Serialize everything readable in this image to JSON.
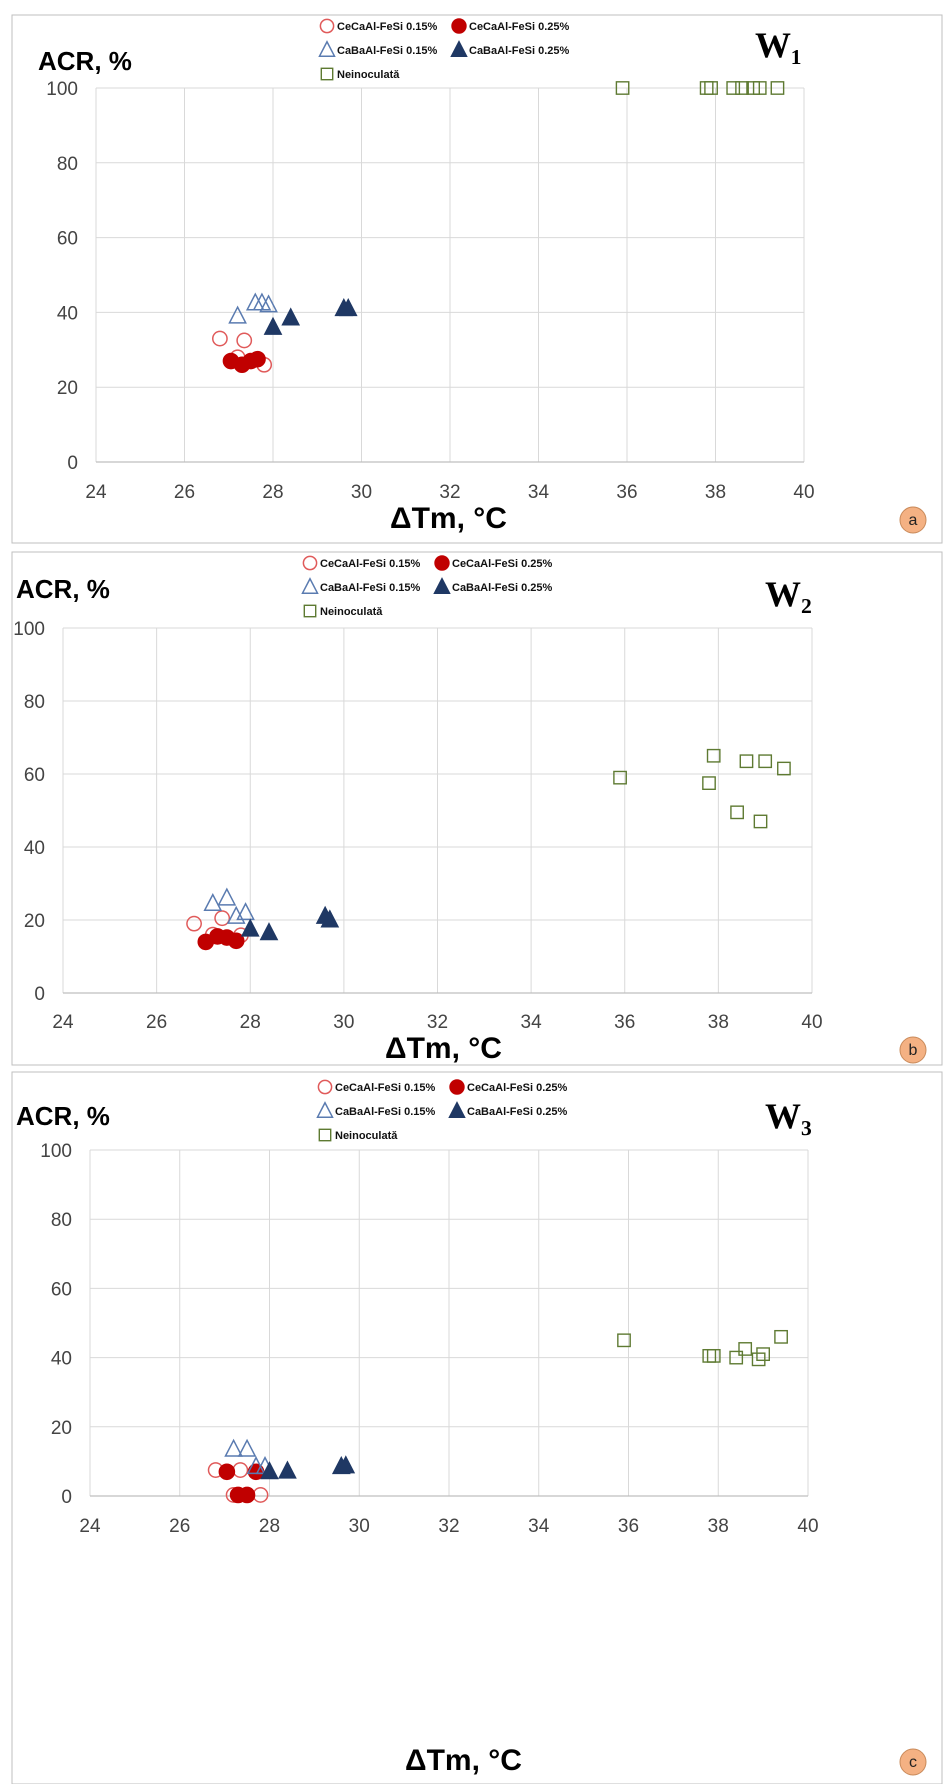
{
  "legend_labels": [
    "CeCaAl-FeSi 0.15%",
    "CeCaAl-FeSi 0.25%",
    "CaBaAl-FeSi 0.15%",
    "CaBaAl-FeSi 0.25%",
    "Neinoculată"
  ],
  "colors": {
    "cecaal_015": "#e05a5a",
    "cecaal_025": "#c00000",
    "cabaal_015": "#5a7bb0",
    "cabaal_025": "#1f3864",
    "neinoculata": "#5e7a32",
    "badge": "#f4b183",
    "grid": "#d9d9d9"
  },
  "chart_data": [
    {
      "type": "scatter",
      "panel_label": "W₁",
      "badge": "a",
      "ylabel": "ACR, %",
      "xlabel": "ΔTm, °C",
      "xlim": [
        24,
        40
      ],
      "ylim": [
        0,
        100
      ],
      "xticks": [
        24,
        26,
        28,
        30,
        32,
        34,
        36,
        38,
        40
      ],
      "yticks": [
        0,
        20,
        40,
        60,
        80,
        100
      ],
      "grid": true,
      "series": [
        {
          "name": "CeCaAl-FeSi 0.15%",
          "marker": "circle-open",
          "points": [
            [
              26.8,
              33
            ],
            [
              27.2,
              28
            ],
            [
              27.35,
              32.5
            ],
            [
              27.8,
              26
            ]
          ]
        },
        {
          "name": "CeCaAl-FeSi 0.25%",
          "marker": "circle-filled",
          "points": [
            [
              27.05,
              27
            ],
            [
              27.3,
              26
            ],
            [
              27.5,
              27
            ],
            [
              27.65,
              27.5
            ]
          ]
        },
        {
          "name": "CaBaAl-FeSi 0.15%",
          "marker": "triangle-open",
          "points": [
            [
              27.2,
              39
            ],
            [
              27.6,
              42.5
            ],
            [
              27.75,
              42.5
            ],
            [
              27.9,
              42
            ]
          ]
        },
        {
          "name": "CaBaAl-FeSi 0.25%",
          "marker": "triangle-filled",
          "points": [
            [
              28.0,
              36
            ],
            [
              28.4,
              38.5
            ],
            [
              29.6,
              41
            ],
            [
              29.7,
              41
            ]
          ]
        },
        {
          "name": "Neinoculată",
          "marker": "square-open",
          "points": [
            [
              35.9,
              100
            ],
            [
              37.8,
              100
            ],
            [
              37.9,
              100
            ],
            [
              38.4,
              100
            ],
            [
              38.6,
              100
            ],
            [
              38.85,
              100
            ],
            [
              39.0,
              100
            ],
            [
              39.4,
              100
            ]
          ]
        }
      ]
    },
    {
      "type": "scatter",
      "panel_label": "W₂",
      "badge": "b",
      "ylabel": "ACR, %",
      "xlabel": "ΔTm, °C",
      "xlim": [
        24,
        40
      ],
      "ylim": [
        0,
        100
      ],
      "xticks": [
        24,
        26,
        28,
        30,
        32,
        34,
        36,
        38,
        40
      ],
      "yticks": [
        0,
        20,
        40,
        60,
        80,
        100
      ],
      "grid": true,
      "series": [
        {
          "name": "CeCaAl-FeSi 0.15%",
          "marker": "circle-open",
          "points": [
            [
              26.8,
              19
            ],
            [
              27.2,
              16
            ],
            [
              27.4,
              20.5
            ],
            [
              27.8,
              15.8
            ]
          ]
        },
        {
          "name": "CeCaAl-FeSi 0.25%",
          "marker": "circle-filled",
          "points": [
            [
              27.05,
              14
            ],
            [
              27.3,
              15.5
            ],
            [
              27.5,
              15.2
            ],
            [
              27.7,
              14.3
            ]
          ]
        },
        {
          "name": "CaBaAl-FeSi 0.15%",
          "marker": "triangle-open",
          "points": [
            [
              27.2,
              24.5
            ],
            [
              27.5,
              26
            ],
            [
              27.7,
              21
            ],
            [
              27.9,
              22
            ]
          ]
        },
        {
          "name": "CaBaAl-FeSi 0.25%",
          "marker": "triangle-filled",
          "points": [
            [
              28.0,
              17.5
            ],
            [
              28.4,
              16.5
            ],
            [
              29.6,
              21
            ],
            [
              29.7,
              20
            ]
          ]
        },
        {
          "name": "Neinoculată",
          "marker": "square-open",
          "points": [
            [
              35.9,
              59
            ],
            [
              37.8,
              57.5
            ],
            [
              37.9,
              65
            ],
            [
              38.4,
              49.5
            ],
            [
              38.6,
              63.5
            ],
            [
              38.9,
              47
            ],
            [
              39.0,
              63.5
            ],
            [
              39.4,
              61.5
            ]
          ]
        }
      ]
    },
    {
      "type": "scatter",
      "panel_label": "W₃",
      "badge": "c",
      "ylabel": "ACR, %",
      "xlabel": "ΔTm, °C",
      "xlim": [
        24,
        40
      ],
      "ylim": [
        0,
        100
      ],
      "xticks": [
        24,
        26,
        28,
        30,
        32,
        34,
        36,
        38,
        40
      ],
      "yticks": [
        0,
        20,
        40,
        60,
        80,
        100
      ],
      "grid": true,
      "series": [
        {
          "name": "CeCaAl-FeSi 0.15%",
          "marker": "circle-open",
          "points": [
            [
              26.8,
              7.5
            ],
            [
              27.2,
              0.3
            ],
            [
              27.35,
              7.5
            ],
            [
              27.8,
              0.3
            ]
          ]
        },
        {
          "name": "CeCaAl-FeSi 0.25%",
          "marker": "circle-filled",
          "points": [
            [
              27.05,
              7
            ],
            [
              27.3,
              0.3
            ],
            [
              27.5,
              0.3
            ],
            [
              27.7,
              7
            ]
          ]
        },
        {
          "name": "CaBaAl-FeSi 0.15%",
          "marker": "triangle-open",
          "points": [
            [
              27.2,
              13.5
            ],
            [
              27.5,
              13.5
            ],
            [
              27.7,
              8.5
            ],
            [
              27.9,
              8.5
            ]
          ]
        },
        {
          "name": "CaBaAl-FeSi 0.25%",
          "marker": "triangle-filled",
          "points": [
            [
              28.0,
              7
            ],
            [
              28.4,
              7.2
            ],
            [
              29.6,
              8.5
            ],
            [
              29.7,
              8.7
            ]
          ]
        },
        {
          "name": "Neinoculată",
          "marker": "square-open",
          "points": [
            [
              35.9,
              45
            ],
            [
              37.8,
              40.5
            ],
            [
              37.9,
              40.5
            ],
            [
              38.4,
              40
            ],
            [
              38.6,
              42.5
            ],
            [
              38.9,
              39.5
            ],
            [
              39.0,
              41
            ],
            [
              39.4,
              46
            ]
          ]
        }
      ]
    }
  ]
}
